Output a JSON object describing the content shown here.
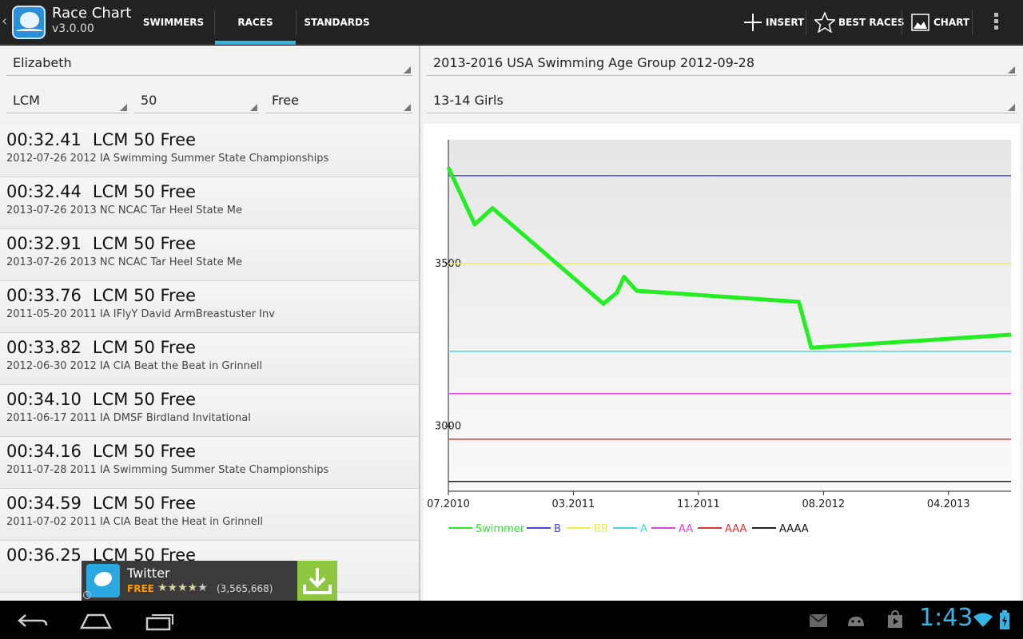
{
  "app": {
    "title": "Race Chart",
    "version": "v3.0.00"
  },
  "tabs": [
    {
      "label": "SWIMMERS"
    },
    {
      "label": "RACES"
    },
    {
      "label": "STANDARDS"
    }
  ],
  "actions": {
    "insert": "INSERT",
    "best_races": "BEST RACES",
    "chart": "CHART"
  },
  "left": {
    "swimmer": "Elizabeth",
    "course": "LCM",
    "distance": "50",
    "stroke": "Free"
  },
  "races": [
    {
      "time": "00:32.41",
      "event": "LCM 50 Free",
      "meet": "2012-07-26 2012 IA Swimming Summer State Championships"
    },
    {
      "time": "00:32.44",
      "event": "LCM 50 Free",
      "meet": "2013-07-26 2013 NC NCAC Tar Heel State Me"
    },
    {
      "time": "00:32.91",
      "event": "LCM 50 Free",
      "meet": "2013-07-26 2013 NC NCAC Tar Heel State Me"
    },
    {
      "time": "00:33.76",
      "event": "LCM 50 Free",
      "meet": "2011-05-20 2011 IA IFlyY David ArmBreastuster Inv"
    },
    {
      "time": "00:33.82",
      "event": "LCM 50 Free",
      "meet": "2012-06-30 2012 IA CIA Beat the Beat in Grinnell"
    },
    {
      "time": "00:34.10",
      "event": "LCM 50 Free",
      "meet": "2011-06-17 2011 IA DMSF Birdland Invitational"
    },
    {
      "time": "00:34.16",
      "event": "LCM 50 Free",
      "meet": "2011-07-28 2011 IA Swimming Summer State Championships"
    },
    {
      "time": "00:34.59",
      "event": "LCM 50 Free",
      "meet": "2011-07-02 2011 IA CIA Beat the Heat in Grinnell"
    },
    {
      "time": "00:36.25",
      "event": "LCM 50 Free",
      "meet": ""
    }
  ],
  "ad": {
    "name": "Twitter",
    "price": "FREE",
    "rating_count": "(3,565,668)",
    "rating": 4
  },
  "right": {
    "standard": "2013-2016 USA Swimming Age Group 2012-09-28",
    "age_group": "13-14 Girls"
  },
  "status": {
    "clock": "1:43"
  },
  "chart_data": {
    "type": "line",
    "ylim": [
      2800,
      3880
    ],
    "yticks": [
      3000,
      3500
    ],
    "xticks": [
      "07.2010",
      "03.2011",
      "11.2011",
      "08.2012",
      "04.2013"
    ],
    "xlim": [
      "2010-07-01",
      "2013-09-15"
    ],
    "series": [
      {
        "name": "Swimmer",
        "color": "#22ee22",
        "points": [
          [
            "2010-07-01",
            3795
          ],
          [
            "2010-08-25",
            3620
          ],
          [
            "2010-10-01",
            3670
          ],
          [
            "2011-05-20",
            3376
          ],
          [
            "2011-06-17",
            3410
          ],
          [
            "2011-07-02",
            3459
          ],
          [
            "2011-07-28",
            3416
          ],
          [
            "2012-06-30",
            3382
          ],
          [
            "2012-07-26",
            3241
          ],
          [
            "2013-09-15",
            3281
          ]
        ]
      },
      {
        "name": "B",
        "color": "#4444dd",
        "value": 3770
      },
      {
        "name": "BB",
        "color": "#eeee44",
        "value": 3500
      },
      {
        "name": "A",
        "color": "#44dddd",
        "value": 3230
      },
      {
        "name": "AA",
        "color": "#dd44dd",
        "value": 3100
      },
      {
        "name": "AAA",
        "color": "#dd3333",
        "value": 2960
      },
      {
        "name": "AAAA",
        "color": "#222222",
        "value": 2830
      }
    ]
  }
}
